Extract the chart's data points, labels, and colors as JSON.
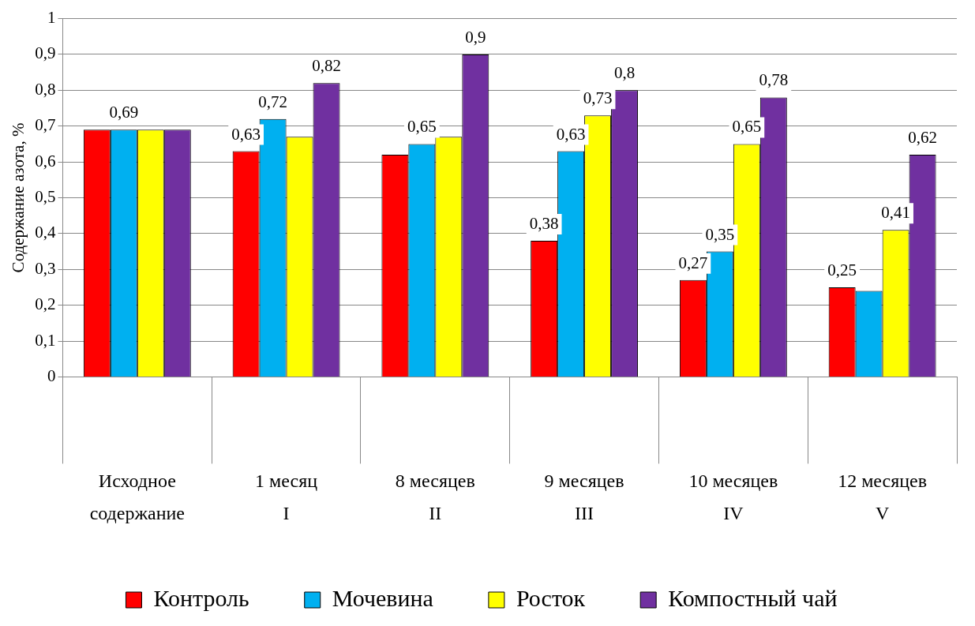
{
  "chart_data": {
    "type": "bar",
    "ylabel": "Содержание азота, %",
    "categories": [
      "Исходное\nсодержание",
      "1 месяц\nI",
      "8 месяцев\nII",
      "9 месяцев\nIII",
      "10 месяцев\nIV",
      "12 месяцев\nV"
    ],
    "series": [
      {
        "name": "Контроль",
        "color": "#ff0000",
        "values": [
          0.69,
          0.63,
          0.62,
          0.38,
          0.27,
          0.25
        ],
        "value_labels": [
          null,
          "0,63",
          null,
          "0,38",
          "0,27",
          "0,25"
        ]
      },
      {
        "name": "Мочевина",
        "color": "#00b0f0",
        "values": [
          0.69,
          0.72,
          0.65,
          0.63,
          0.35,
          0.24
        ],
        "value_labels": [
          "0,69",
          "0,72",
          "0,65",
          "0,63",
          "0,35",
          null
        ]
      },
      {
        "name": "Росток",
        "color": "#ffff00",
        "values": [
          0.69,
          0.67,
          0.67,
          0.73,
          0.65,
          0.41
        ],
        "value_labels": [
          null,
          null,
          null,
          "0,73",
          "0,65",
          "0,41"
        ]
      },
      {
        "name": "Компостный чай",
        "color": "#7030a0",
        "values": [
          0.69,
          0.82,
          0.9,
          0.8,
          0.78,
          0.62
        ],
        "value_labels": [
          null,
          "0,82",
          "0,9",
          "0,8",
          "0,78",
          "0,62"
        ]
      }
    ],
    "ylim": [
      0,
      1
    ],
    "yticks": [
      0,
      {
        "value": 0.1,
        "label": "0,1"
      },
      {
        "value": 0.2,
        "label": "0,2"
      },
      {
        "value": 0.3,
        "label": "0,3"
      },
      {
        "value": 0.4,
        "label": "0,4"
      },
      {
        "value": 0.5,
        "label": "0,5"
      },
      {
        "value": 0.6,
        "label": "0,6"
      },
      {
        "value": 0.7,
        "label": "0,7"
      },
      {
        "value": 0.8,
        "label": "0,8"
      },
      {
        "value": 0.9,
        "label": "0,9"
      },
      1
    ],
    "grid": "y",
    "legend": "bottom"
  }
}
